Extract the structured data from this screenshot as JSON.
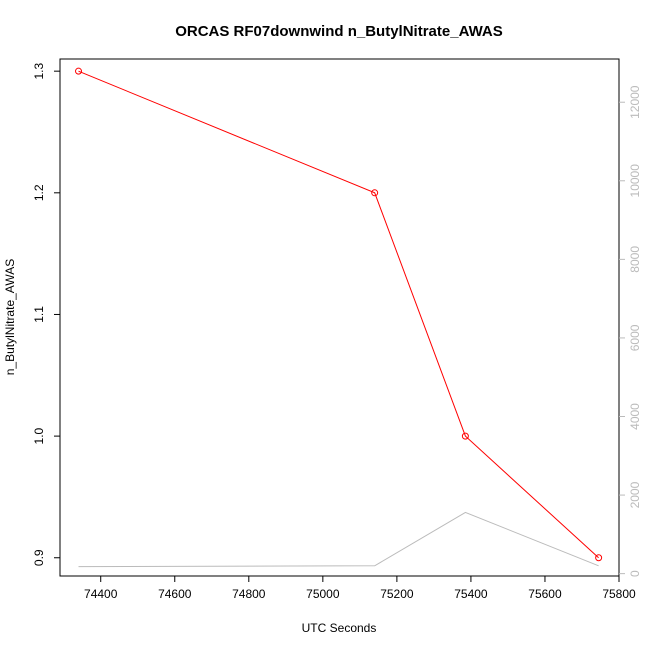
{
  "chart_data": {
    "type": "line",
    "title": "ORCAS RF07downwind n_ButylNitrate_AWAS",
    "xlabel": "UTC Seconds",
    "ylabel": "n_ButylNitrate_AWAS",
    "xlim": [
      74290,
      75800
    ],
    "ylim": [
      0.885,
      1.31
    ],
    "y2lim": [
      -60,
      13100
    ],
    "x_ticks": [
      74400,
      74600,
      74800,
      75000,
      75200,
      75400,
      75600,
      75800
    ],
    "x_tick_labels": [
      "74400",
      "74600",
      "74800",
      "75000",
      "75200",
      "75400",
      "75600",
      "75800"
    ],
    "y_ticks": [
      0.9,
      1.0,
      1.1,
      1.2,
      1.3
    ],
    "y_tick_labels": [
      "0.9",
      "1.0",
      "1.1",
      "1.2",
      "1.3"
    ],
    "y2_ticks": [
      0,
      2000,
      4000,
      6000,
      8000,
      10000,
      12000
    ],
    "y2_tick_labels": [
      "0",
      "2000",
      "4000",
      "6000",
      "8000",
      "10000",
      "12000"
    ],
    "grid": false,
    "series": [
      {
        "axis": "left",
        "color": "#ff0000",
        "markers": "open-circle",
        "x": [
          74340,
          75140,
          75385,
          75745
        ],
        "y": [
          1.3,
          1.2,
          1.0,
          0.9
        ]
      },
      {
        "axis": "right",
        "color": "#bbbbbb",
        "markers": "none",
        "x": [
          74340,
          75140,
          75385,
          75745
        ],
        "y": [
          180,
          200,
          1560,
          200
        ]
      }
    ]
  }
}
